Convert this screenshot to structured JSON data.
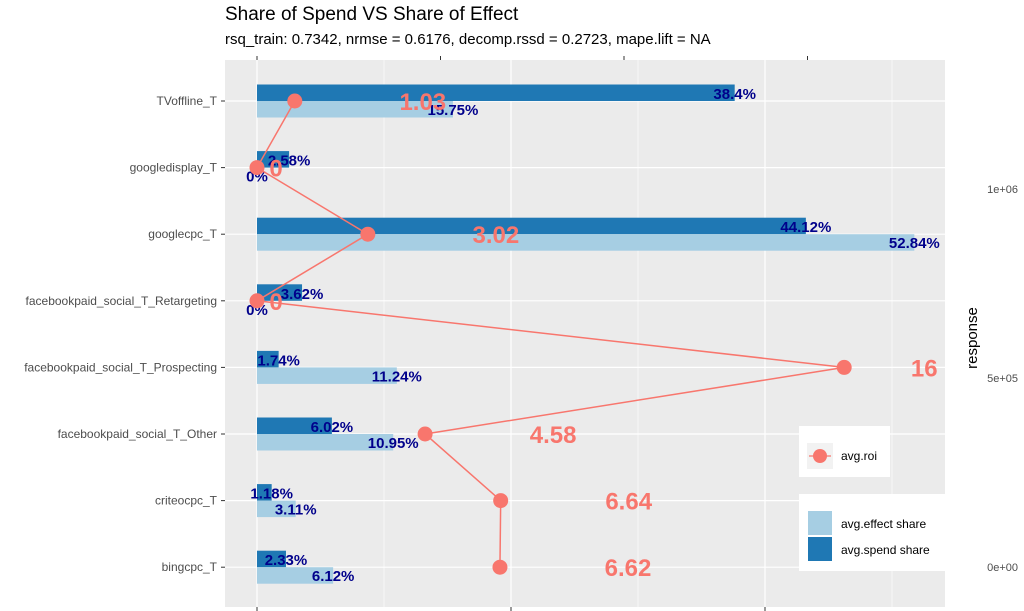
{
  "chart_data": {
    "type": "bar",
    "title": "Share of Spend VS Share of Effect",
    "subtitle": "rsq_train: 0.7342, nrmse = 0.6176, decomp.rssd = 0.2723, mape.lift = NA",
    "orientation": "horizontal",
    "categories": [
      "TVoffline_T",
      "googledisplay_T",
      "googlecpc_T",
      "facebookpaid_social_T_Retargeting",
      "facebookpaid_social_T_Prospecting",
      "facebookpaid_social_T_Other",
      "criteocpc_T",
      "bingcpc_T"
    ],
    "series": [
      {
        "name": "avg.spend share",
        "color": "#1f78b4",
        "values": [
          38.4,
          2.58,
          44.12,
          3.62,
          1.74,
          6.02,
          1.18,
          2.33
        ],
        "labels": [
          "38.4%",
          "2.58%",
          "44.12%",
          "3.62%",
          "1.74%",
          "6.02%",
          "1.18%",
          "2.33%"
        ]
      },
      {
        "name": "avg.effect share",
        "color": "#a6cee3",
        "values": [
          15.75,
          0,
          52.84,
          0,
          11.24,
          10.95,
          3.11,
          6.12
        ],
        "labels": [
          "15.75%",
          "0%",
          "52.84%",
          "0%",
          "11.24%",
          "10.95%",
          "3.11%",
          "6.12%"
        ]
      },
      {
        "name": "avg.roi",
        "type": "line",
        "color": "#f8766d",
        "values": [
          1.03,
          0,
          3.02,
          0,
          16,
          4.58,
          6.64,
          6.62
        ],
        "labels": [
          "1.03",
          "0",
          "3.02",
          "0",
          "16",
          "4.58",
          "6.64",
          "6.62"
        ]
      }
    ],
    "xlim_percent": [
      0,
      55
    ],
    "roi_axis_ticks": [
      0,
      5,
      10,
      15
    ],
    "ylabel_right": "response",
    "right_axis_ticks": [
      "0e+00",
      "5e+05",
      "1e+06"
    ],
    "right_axis_values": [
      0,
      500000,
      1000000
    ],
    "legend": {
      "position": "bottom-right",
      "roi_entry": "avg.roi",
      "share_entries": [
        "avg.effect share",
        "avg.spend share"
      ]
    },
    "grid": true,
    "colors": {
      "panel_bg": "#ebebeb",
      "grid": "#ffffff",
      "spend": "#1f78b4",
      "effect": "#a6cee3",
      "roi": "#f8766d",
      "bar_label": "#00008b"
    }
  }
}
